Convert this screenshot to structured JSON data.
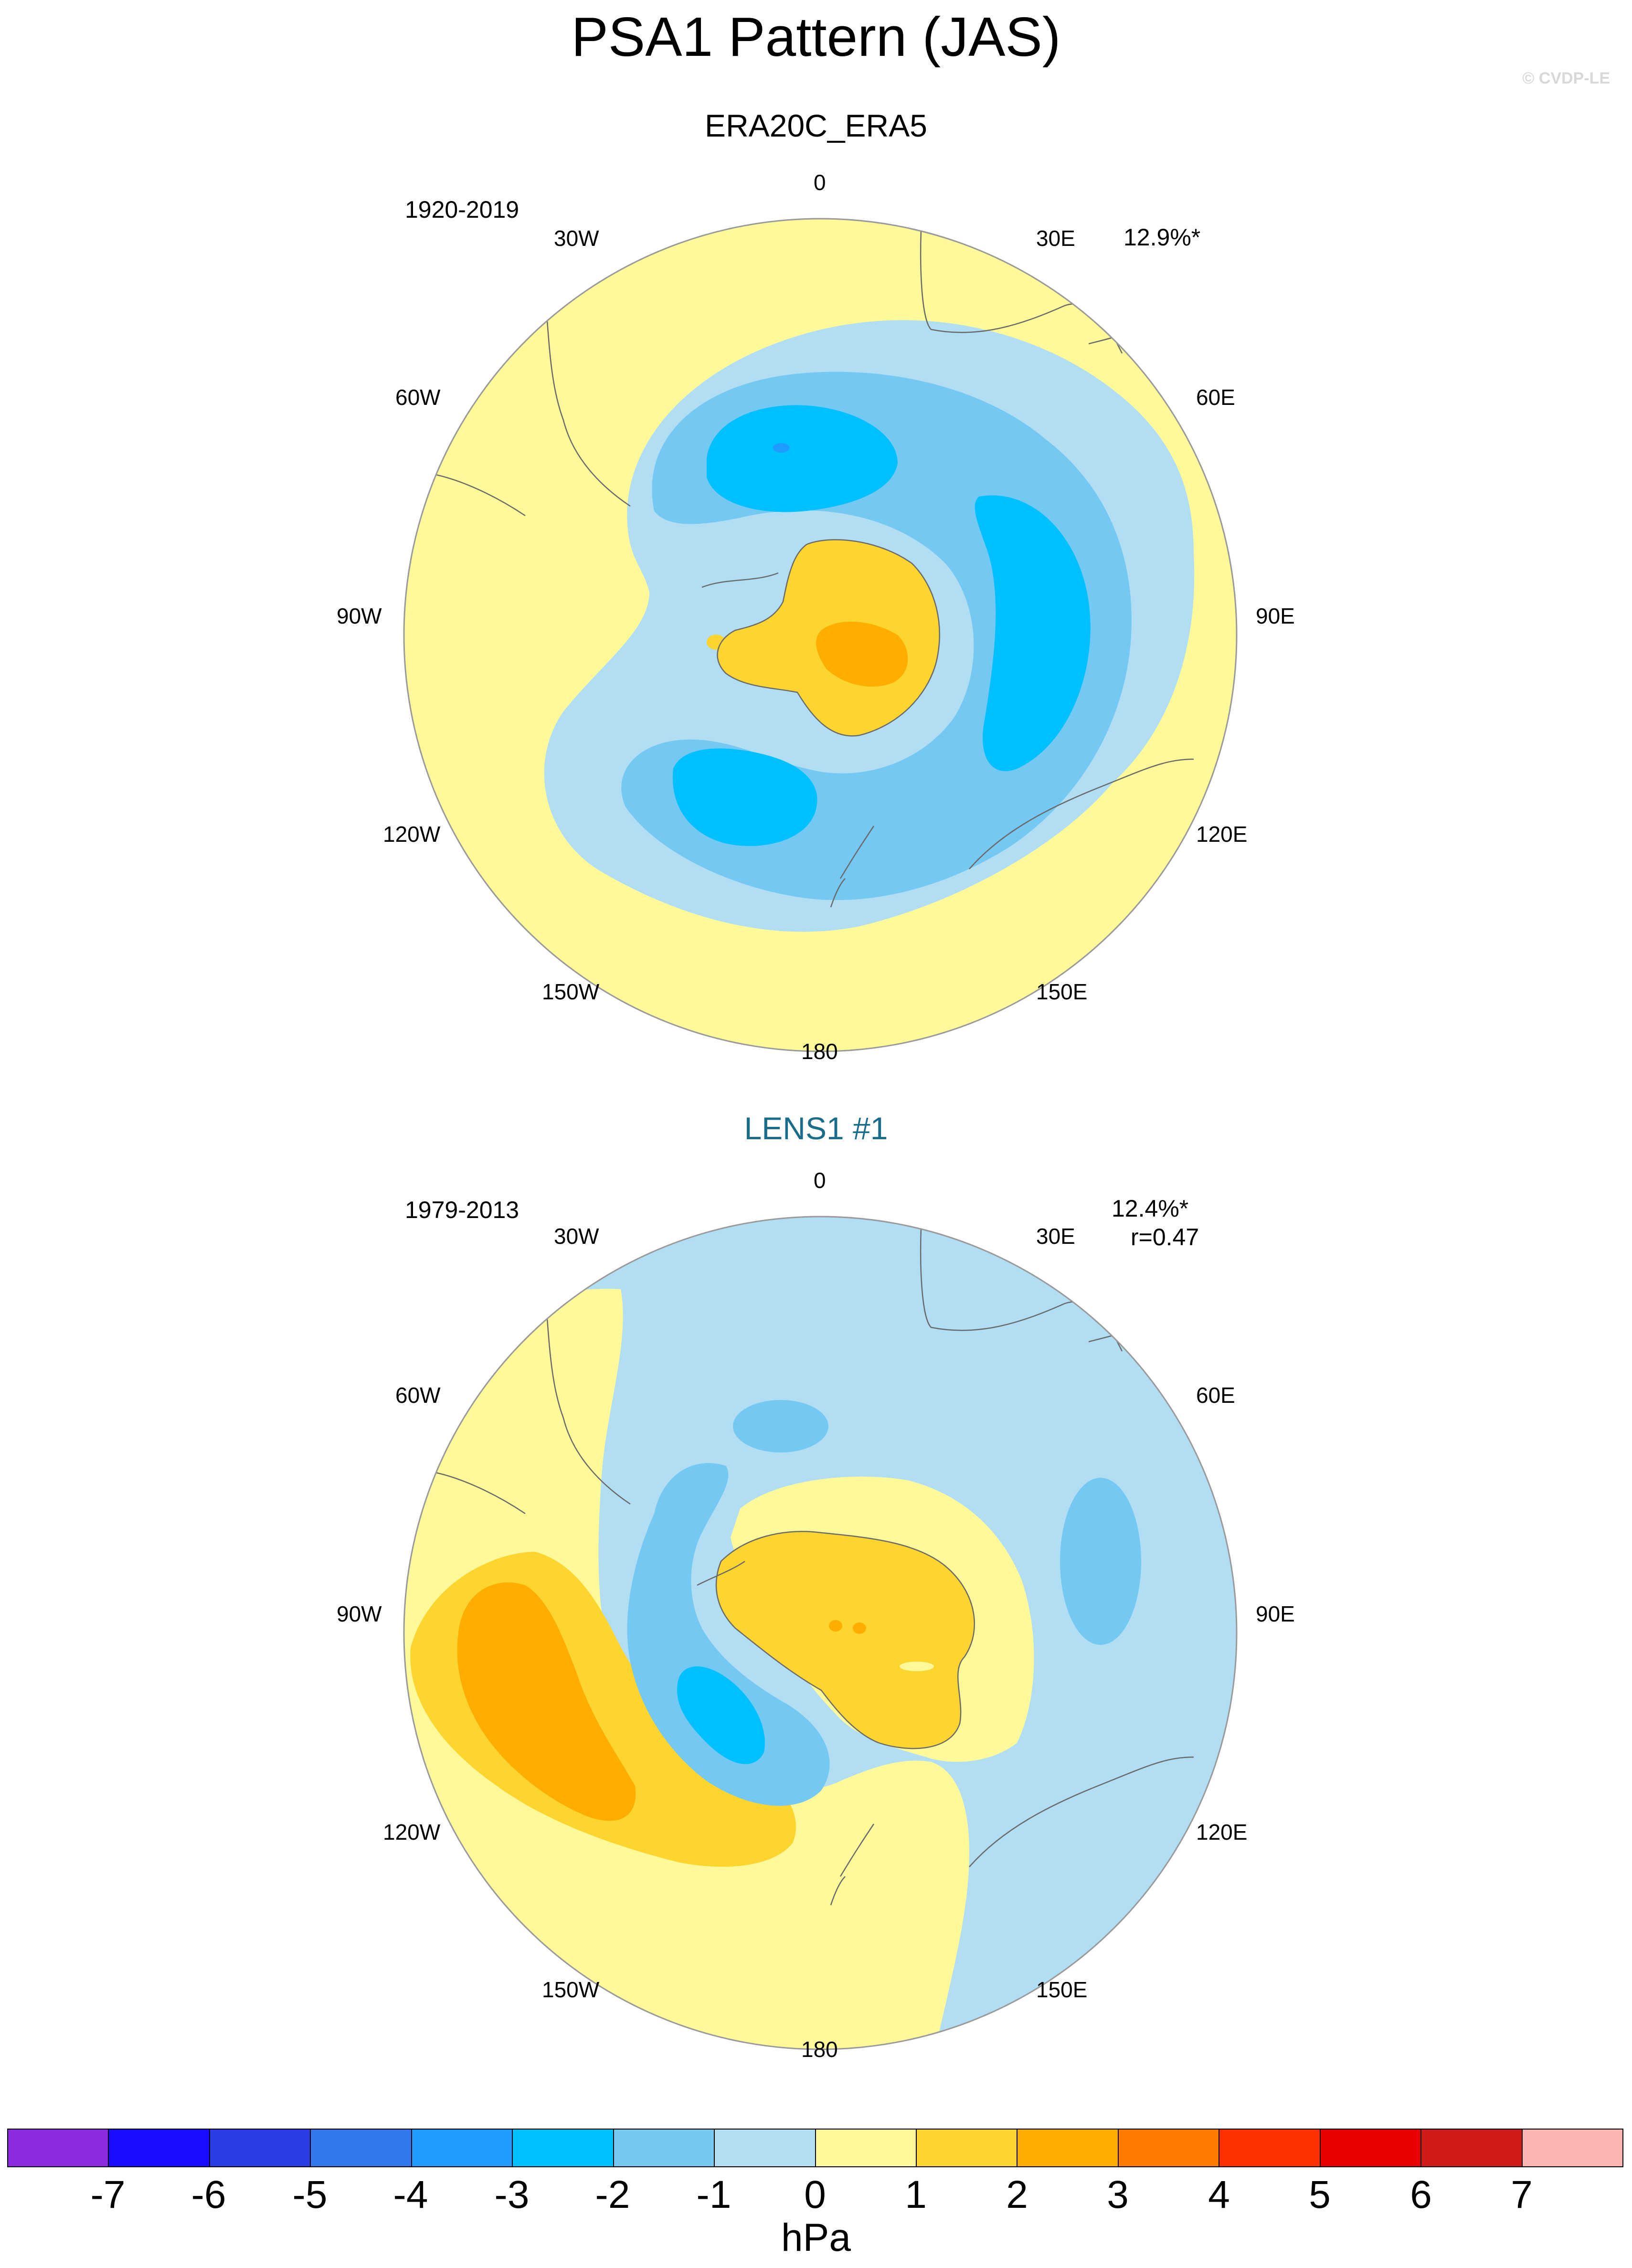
{
  "title": "PSA1 Pattern (JAS)",
  "watermark": "© CVDP-LE",
  "panels": [
    {
      "title": "ERA20C_ERA5",
      "period": "1920-2019",
      "variance": "12.9%*",
      "corr": "",
      "lon_labels": [
        "0",
        "30E",
        "60E",
        "90E",
        "120E",
        "150E",
        "180",
        "150W",
        "120W",
        "90W",
        "60W",
        "30W"
      ]
    },
    {
      "title": "LENS1 #1",
      "period": "1979-2013",
      "variance": "12.4%*",
      "corr": "r=0.47",
      "lon_labels": [
        "0",
        "30E",
        "60E",
        "90E",
        "120E",
        "150E",
        "180",
        "150W",
        "120W",
        "90W",
        "60W",
        "30W"
      ]
    }
  ],
  "colorbar": {
    "units": "hPa",
    "labels": [
      "-7",
      "-6",
      "-5",
      "-4",
      "-3",
      "-2",
      "-1",
      "0",
      "1",
      "2",
      "3",
      "4",
      "5",
      "6",
      "7"
    ],
    "colors": [
      "#8a2be2",
      "#1a0dff",
      "#2a3de6",
      "#3377ee",
      "#1e9bff",
      "#00c0ff",
      "#75c8f2",
      "#b2def4",
      "#fff99a",
      "#fdd52e",
      "#ffad00",
      "#ff7a00",
      "#ff3000",
      "#e80000",
      "#d11b1b",
      "#ffb4b4"
    ]
  },
  "colors": {
    "c_m1": "#b2def4",
    "c_m2": "#75c8f2",
    "c_m3": "#00c0ff",
    "c_m4": "#1e9bff",
    "c_p0": "#fff99a",
    "c_p1": "#fdd52e",
    "c_p2": "#ffad00",
    "coast": "#6a6a6a",
    "panel2_title": "#1a6d8a"
  }
}
